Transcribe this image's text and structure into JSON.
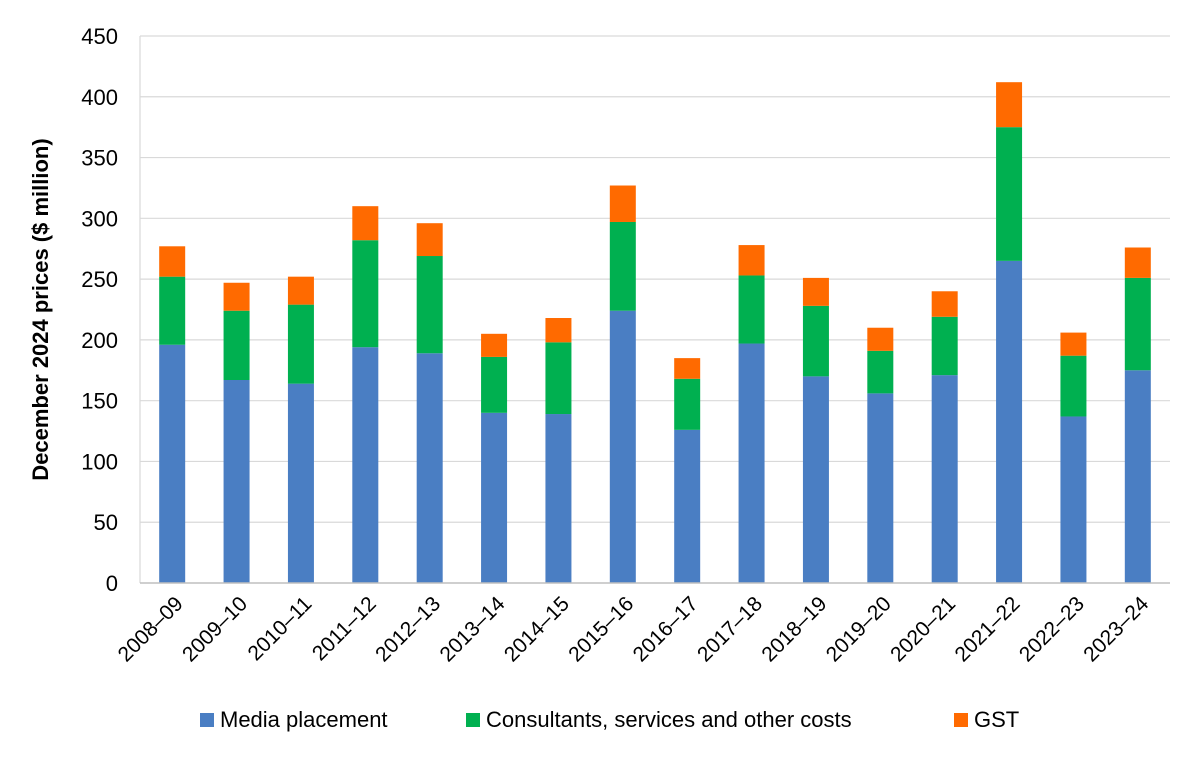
{
  "chart_data": {
    "type": "bar",
    "stacked": true,
    "title": "",
    "xlabel": "",
    "ylabel": "December 2024 prices ($ million)",
    "ylim": [
      0,
      450
    ],
    "yticks": [
      0,
      50,
      100,
      150,
      200,
      250,
      300,
      350,
      400,
      450
    ],
    "grid": true,
    "legend_position": "bottom",
    "categories": [
      "2008–09",
      "2009–10",
      "2010–11",
      "2011–12",
      "2012–13",
      "2013–14",
      "2014–15",
      "2015–16",
      "2016–17",
      "2017–18",
      "2018–19",
      "2019–20",
      "2020–21",
      "2021–22",
      "2022–23",
      "2023–24"
    ],
    "series": [
      {
        "name": "Media placement",
        "color": "#4A7EC3",
        "values": [
          196,
          167,
          164,
          194,
          189,
          140,
          139,
          224,
          126,
          197,
          170,
          156,
          171,
          265,
          137,
          175
        ]
      },
      {
        "name": "Consultants, services and other costs",
        "color": "#00B050",
        "values": [
          56,
          57,
          65,
          88,
          80,
          46,
          59,
          73,
          42,
          56,
          58,
          35,
          48,
          110,
          50,
          76
        ]
      },
      {
        "name": "GST",
        "color": "#FF6A00",
        "values": [
          25,
          23,
          23,
          28,
          27,
          19,
          20,
          30,
          17,
          25,
          23,
          19,
          21,
          37,
          19,
          25
        ]
      }
    ]
  }
}
